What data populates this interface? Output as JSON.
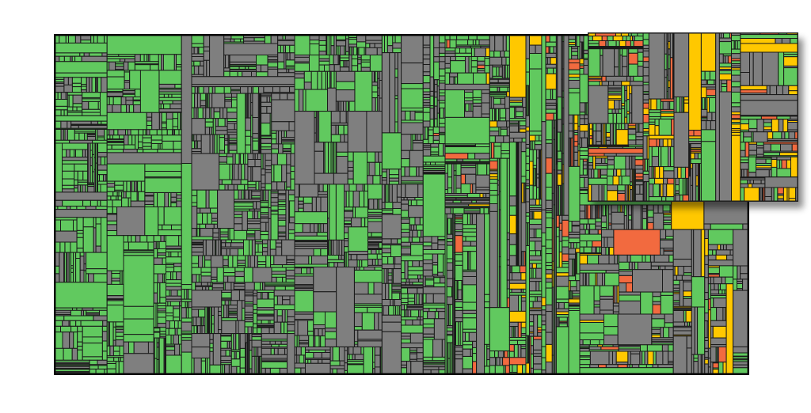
{
  "legend": {
    "status_colors": {
      "ok": "#61c95f",
      "neutral": "#7f7f7f",
      "warning": "#ffc800",
      "critical": "#f26a3f"
    }
  },
  "treemap": {
    "dominant_status": "mixed",
    "seed": 20240613
  },
  "inset": {
    "seed": 99173
  }
}
